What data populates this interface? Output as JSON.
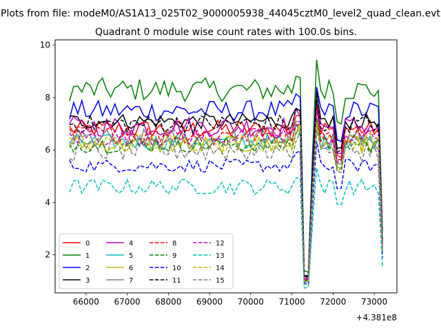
{
  "figure": {
    "suptitle": "Plots from file: modeM0/AS1A13_025T02_9000005938_44045cztM0_level2_quad_clean.evt",
    "title": "Quadrant 0 module wise count rates with 100.0s bins.",
    "offset_text": "+4.381e8"
  },
  "chart_data": {
    "type": "line",
    "title": "Quadrant 0 module wise count rates with 100.0s bins.",
    "xlabel": "",
    "ylabel": "",
    "x_offset": 438100000,
    "xlim": [
      65250,
      73550
    ],
    "ylim": [
      0.55,
      10.2
    ],
    "xticks": [
      66000,
      67000,
      68000,
      69000,
      70000,
      71000,
      72000,
      73000
    ],
    "yticks": [
      2,
      4,
      6,
      8,
      10
    ],
    "grid": false,
    "legend_placement": "lower-left",
    "x_range": [
      65600,
      73200
    ],
    "bin_seconds": 100,
    "profile_shape": {
      "dip_window": [
        71250,
        71450
      ],
      "dip_value_fraction": 0.16,
      "peak_after_dip": 71600,
      "second_dip_window": [
        72050,
        72200
      ],
      "tail_drop_start": 73000,
      "end_value_fraction": 0.35
    },
    "series": [
      {
        "name": "0",
        "color": "#ff0000",
        "dash": "solid",
        "base": 6.8,
        "noise": 0.35
      },
      {
        "name": "1",
        "color": "#008000",
        "dash": "solid",
        "base": 8.3,
        "noise": 0.45
      },
      {
        "name": "2",
        "color": "#0000ff",
        "dash": "solid",
        "base": 7.5,
        "noise": 0.4
      },
      {
        "name": "3",
        "color": "#000000",
        "dash": "solid",
        "base": 7.1,
        "noise": 0.3
      },
      {
        "name": "4",
        "color": "#bf00bf",
        "dash": "solid",
        "base": 6.9,
        "noise": 0.4
      },
      {
        "name": "5",
        "color": "#00bfbf",
        "dash": "solid",
        "base": 6.3,
        "noise": 0.3
      },
      {
        "name": "6",
        "color": "#bfbf00",
        "dash": "solid",
        "base": 6.2,
        "noise": 0.35
      },
      {
        "name": "7",
        "color": "#808080",
        "dash": "solid",
        "base": 6.4,
        "noise": 0.4
      },
      {
        "name": "8",
        "color": "#ff0000",
        "dash": "dashed",
        "base": 6.6,
        "noise": 0.35
      },
      {
        "name": "9",
        "color": "#008000",
        "dash": "dashed",
        "base": 6.2,
        "noise": 0.3
      },
      {
        "name": "10",
        "color": "#0000ff",
        "dash": "dashed",
        "base": 5.4,
        "noise": 0.25
      },
      {
        "name": "11",
        "color": "#000000",
        "dash": "dashed",
        "base": 7.0,
        "noise": 0.35
      },
      {
        "name": "12",
        "color": "#bf00bf",
        "dash": "dashed",
        "base": 6.5,
        "noise": 0.35
      },
      {
        "name": "13",
        "color": "#00bfbf",
        "dash": "dashed",
        "base": 4.6,
        "noise": 0.3
      },
      {
        "name": "14",
        "color": "#bfbf00",
        "dash": "dashed",
        "base": 6.3,
        "noise": 0.35
      },
      {
        "name": "15",
        "color": "#808080",
        "dash": "dashed",
        "base": 6.0,
        "noise": 0.45
      }
    ]
  }
}
